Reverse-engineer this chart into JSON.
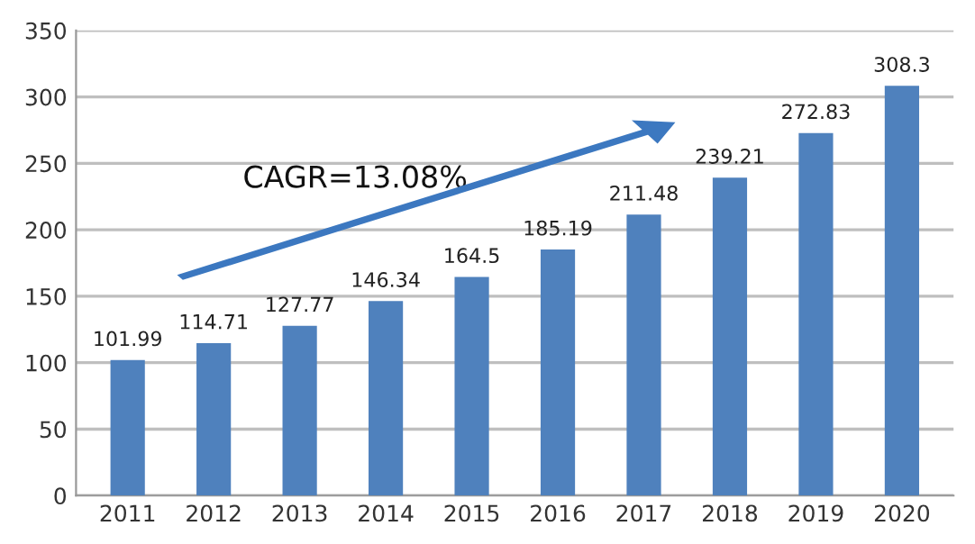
{
  "chart_data": {
    "type": "bar",
    "categories": [
      "2011",
      "2012",
      "2013",
      "2014",
      "2015",
      "2016",
      "2017",
      "2018",
      "2019",
      "2020"
    ],
    "values": [
      101.99,
      114.71,
      127.77,
      146.34,
      164.5,
      185.19,
      211.48,
      239.21,
      272.83,
      308.3
    ],
    "color": "#4f81bd",
    "ylim": [
      0,
      350
    ],
    "yticks": [
      0,
      50,
      100,
      150,
      200,
      250,
      300,
      350
    ],
    "grid": "y",
    "data_labels": true,
    "annotations": [
      "CAGR=13.08%"
    ]
  }
}
